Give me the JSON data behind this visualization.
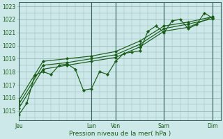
{
  "bg_color": "#cce8e8",
  "grid_color": "#99bbbb",
  "line_color": "#1a5c1a",
  "xlabel": "Pression niveau de la mer( hPa )",
  "ylim": [
    1014.3,
    1023.3
  ],
  "yticks": [
    1015,
    1016,
    1017,
    1018,
    1019,
    1020,
    1021,
    1022,
    1023
  ],
  "xtick_labels": [
    "Jeu",
    "Lun",
    "Ven",
    "Sam",
    "Dim"
  ],
  "xtick_positions": [
    0,
    36,
    48,
    72,
    96
  ],
  "xlim": [
    0,
    100
  ],
  "series1_x": [
    0,
    4,
    8,
    12,
    16,
    20,
    24,
    28,
    32,
    36,
    40,
    44,
    48,
    52,
    56,
    60,
    64,
    68,
    72,
    76,
    80,
    84,
    88,
    92,
    96
  ],
  "series1_y": [
    1014.7,
    1015.6,
    1017.75,
    1018.0,
    1017.8,
    1018.5,
    1018.6,
    1018.2,
    1016.6,
    1016.7,
    1018.0,
    1017.8,
    1018.8,
    1019.4,
    1019.5,
    1019.6,
    1021.1,
    1021.5,
    1021.0,
    1021.9,
    1022.0,
    1021.3,
    1021.6,
    1022.5,
    1022.1
  ],
  "series2_x": [
    0,
    12,
    24,
    36,
    48,
    60,
    72,
    84,
    96
  ],
  "series2_y": [
    1015.2,
    1018.2,
    1018.5,
    1018.8,
    1019.1,
    1019.9,
    1021.1,
    1021.4,
    1022.2
  ],
  "series3_x": [
    0,
    12,
    24,
    36,
    48,
    60,
    72,
    84,
    96
  ],
  "series3_y": [
    1015.5,
    1018.5,
    1018.7,
    1019.0,
    1019.3,
    1020.1,
    1021.3,
    1021.65,
    1022.05
  ],
  "series4_x": [
    0,
    12,
    24,
    36,
    48,
    60,
    72,
    84,
    96
  ],
  "series4_y": [
    1015.8,
    1018.8,
    1019.0,
    1019.2,
    1019.55,
    1020.35,
    1021.5,
    1021.8,
    1022.2
  ]
}
